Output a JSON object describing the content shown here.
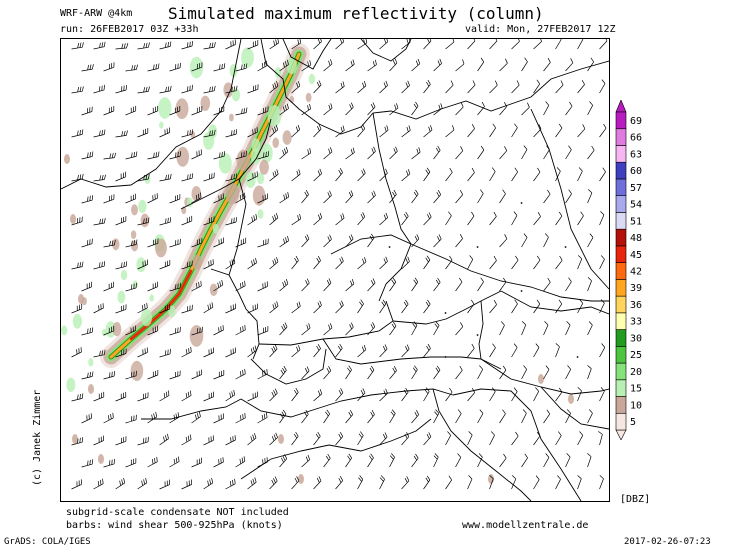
{
  "header": {
    "title": "Simulated maximum reflectivity (column)",
    "model": "WRF-ARW @4km",
    "run": "run: 26FEB2017 03Z +33h",
    "valid": "valid: Mon, 27FEB2017 12Z"
  },
  "credit": "(c) Janek Zimmer",
  "footer": {
    "note1": "subgrid-scale condensate NOT included",
    "note2": "barbs: wind shear 500-925hPa (knots)",
    "website": "www.modellzentrale.de",
    "unit": "[DBZ]",
    "software": "GrADS: COLA/IGES",
    "timestamp": "2017-02-26-07:23"
  },
  "colorbar": {
    "labels": [
      "5",
      "10",
      "15",
      "20",
      "25",
      "30",
      "33",
      "36",
      "39",
      "42",
      "45",
      "48",
      "51",
      "54",
      "57",
      "60",
      "63",
      "66",
      "69"
    ],
    "colors": [
      "#f7e7e2",
      "#c9a89a",
      "#b8f0b4",
      "#86e27a",
      "#4dc63f",
      "#239b1f",
      "#ffffb0",
      "#ffd45c",
      "#ffa51f",
      "#ff6a10",
      "#e8240e",
      "#b4100c",
      "#dadaf5",
      "#a9a9ee",
      "#6f6fdc",
      "#3f3fc0",
      "#f6b6f2",
      "#e07ce0",
      "#b81cc0"
    ]
  },
  "map": {
    "region": "Central Europe"
  }
}
